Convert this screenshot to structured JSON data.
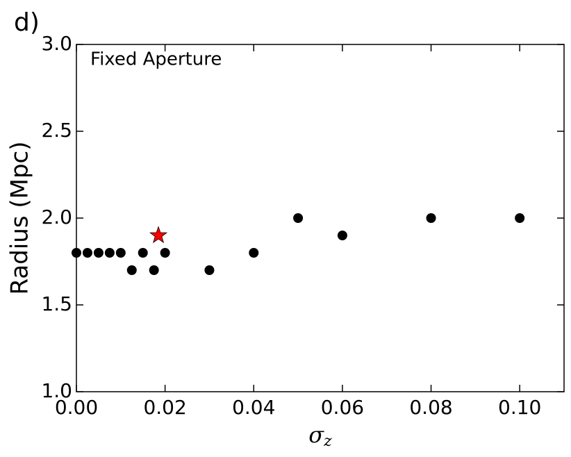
{
  "chart_data": {
    "type": "scatter",
    "panel_label": "d)",
    "annotation": "Fixed Aperture",
    "y_label": "Radius (Mpc)",
    "x_label": "σ",
    "x_label_subscript": "z",
    "series": [
      {
        "color": "#000000",
        "x": [
          0,
          0.0025,
          0.005,
          0.0075,
          0.01,
          0.0125,
          0.015,
          0.0175,
          0.02,
          0.03,
          0.04,
          0.05,
          0.06,
          0.08,
          0.1
        ],
        "values": [
          1.8,
          1.8,
          1.8,
          1.8,
          1.8,
          1.7,
          1.8,
          1.7,
          1.8,
          1.7,
          1.8,
          2.0,
          1.9,
          2.0,
          2.0
        ]
      }
    ],
    "highlight": {
      "x": 0.0185,
      "y": 1.9,
      "color": "#ff0000",
      "marker": "star"
    },
    "xlim": [
      0,
      0.11
    ],
    "ylim": [
      1.0,
      3.0
    ],
    "xticks": [
      {
        "value": 0,
        "label": "0.00"
      },
      {
        "value": 0.02,
        "label": "0.02"
      },
      {
        "value": 0.04,
        "label": "0.04"
      },
      {
        "value": 0.06,
        "label": "0.06"
      },
      {
        "value": 0.08,
        "label": "0.08"
      },
      {
        "value": 0.1,
        "label": "0.10"
      }
    ],
    "yticks": [
      {
        "value": 1.0,
        "label": "1.0"
      },
      1.5,
      {
        "value": 2.0,
        "label": "2.0"
      },
      2.5,
      {
        "value": 3.0,
        "label": "3.0"
      }
    ],
    "grid": false
  }
}
